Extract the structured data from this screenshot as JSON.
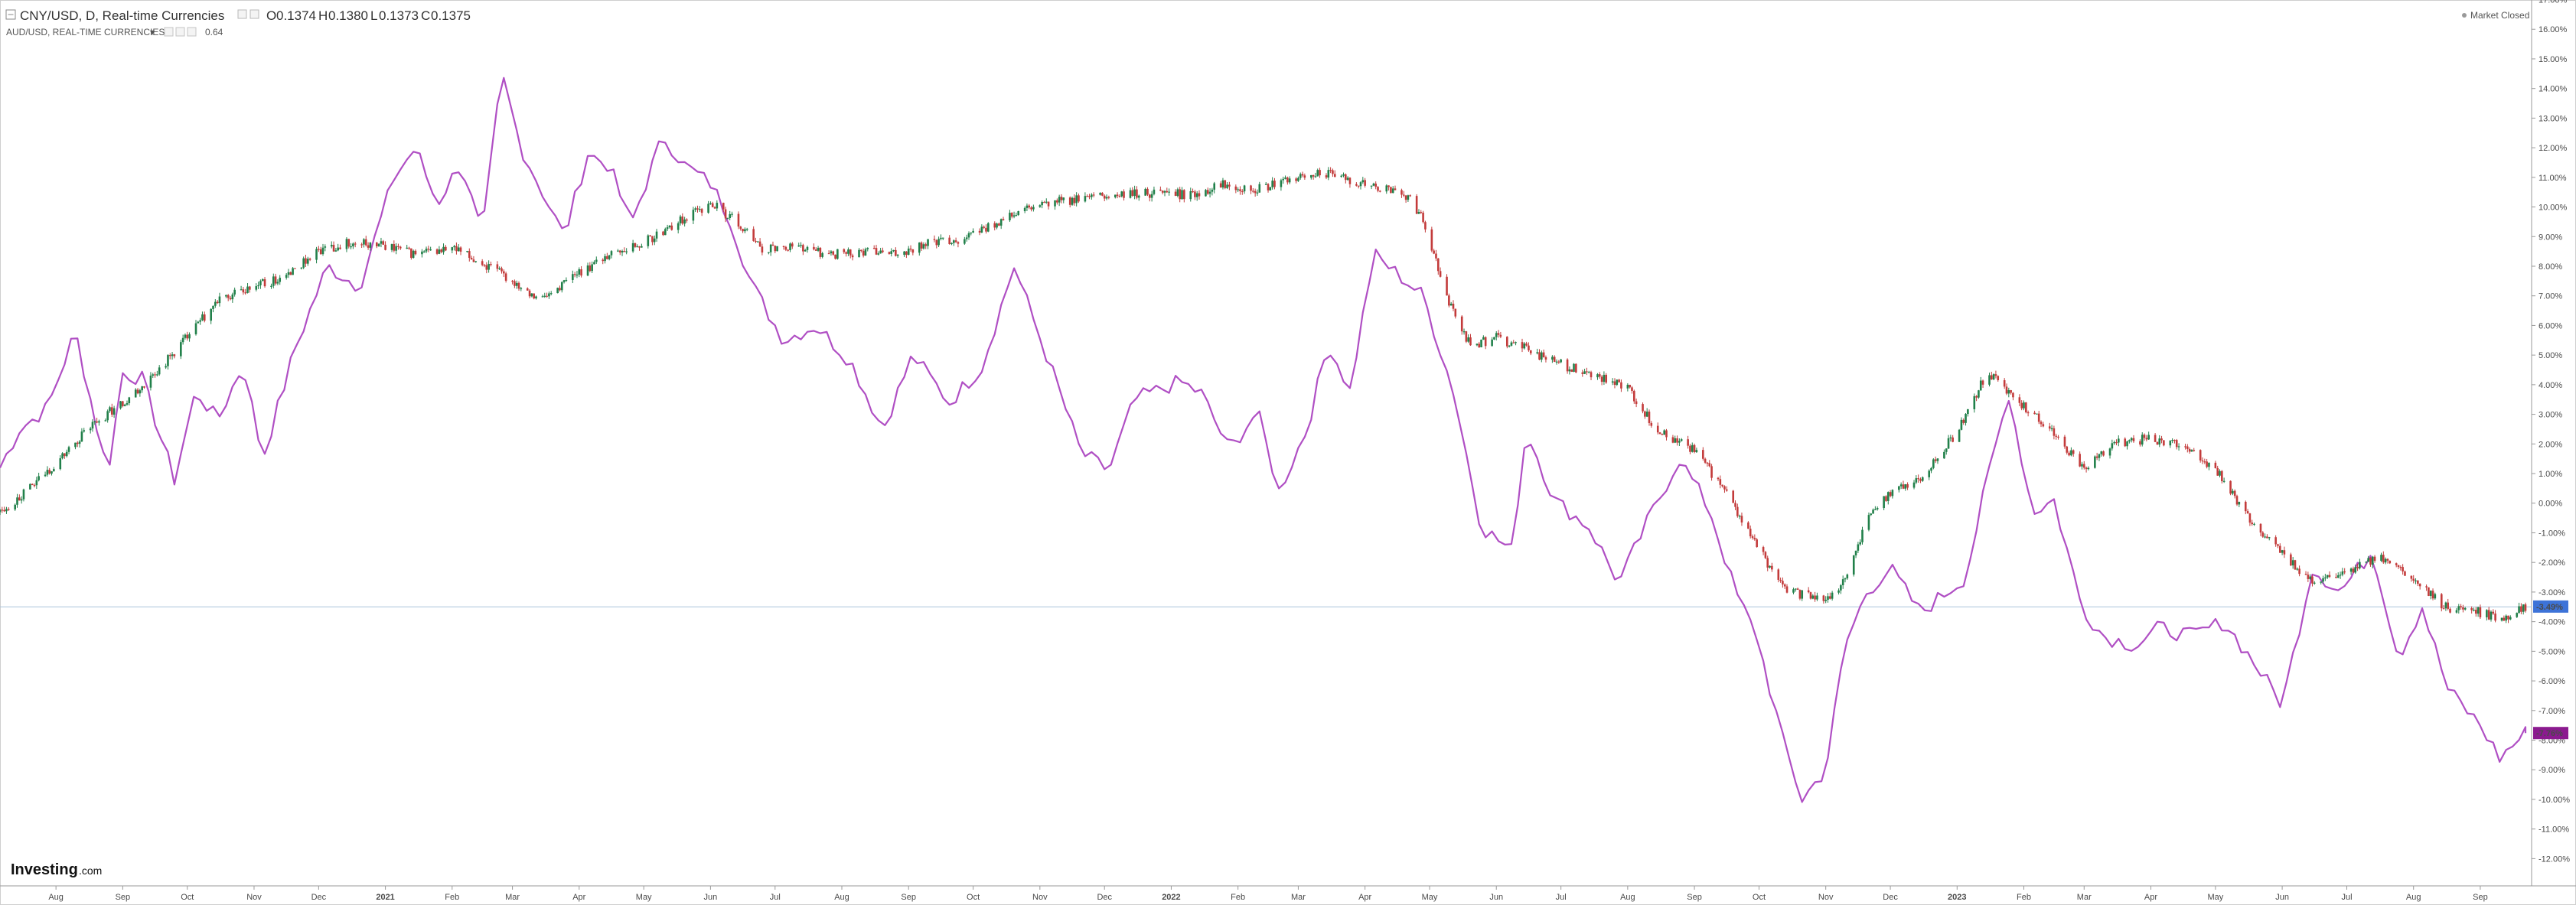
{
  "header": {
    "main_title": "CNY/USD, D, Real-time Currencies",
    "ohlc": [
      {
        "label": "O",
        "value": "0.1374"
      },
      {
        "label": "H",
        "value": "0.1380"
      },
      {
        "label": "L",
        "value": "0.1373"
      },
      {
        "label": "C",
        "value": "0.1375"
      }
    ],
    "compare_title": "AUD/USD, REAL-TIME CURRENCIES",
    "compare_value": "0.64",
    "market_status": "Market Closed"
  },
  "brand": {
    "name": "Investing",
    "suffix": ".com"
  },
  "colors": {
    "up": "#21804a",
    "down": "#c33b3b",
    "compare": "#b04fc4",
    "last_main": "#3d73d8",
    "last_compare": "#8b1a8f",
    "grid_line": "#aac3dc"
  },
  "chart_data": {
    "type": "line",
    "y_axis": {
      "unit": "%",
      "range": [
        -12.5,
        17.0
      ],
      "ticks": [
        "17.00%",
        "16.00%",
        "15.00%",
        "14.00%",
        "13.00%",
        "12.00%",
        "11.00%",
        "10.00%",
        "9.00%",
        "8.00%",
        "7.00%",
        "6.00%",
        "5.00%",
        "4.00%",
        "3.00%",
        "2.00%",
        "1.00%",
        "0.00%",
        "-1.00%",
        "-2.00%",
        "-3.00%",
        "-4.00%",
        "-5.00%",
        "-6.00%",
        "-7.00%",
        "-8.00%",
        "-9.00%",
        "-10.00%",
        "-11.00%",
        "-12.00%"
      ]
    },
    "x_axis": {
      "range": [
        "2020-07-06",
        "2023-09-22"
      ],
      "ticks": [
        {
          "date": "2020-08-01",
          "label": "Aug"
        },
        {
          "date": "2020-09-01",
          "label": "Sep"
        },
        {
          "date": "2020-10-01",
          "label": "Oct"
        },
        {
          "date": "2020-11-01",
          "label": "Nov"
        },
        {
          "date": "2020-12-01",
          "label": "Dec"
        },
        {
          "date": "2021-01-01",
          "label": "2021"
        },
        {
          "date": "2021-02-01",
          "label": "Feb"
        },
        {
          "date": "2021-03-01",
          "label": "Mar"
        },
        {
          "date": "2021-04-01",
          "label": "Apr"
        },
        {
          "date": "2021-05-01",
          "label": "May"
        },
        {
          "date": "2021-06-01",
          "label": "Jun"
        },
        {
          "date": "2021-07-01",
          "label": "Jul"
        },
        {
          "date": "2021-08-01",
          "label": "Aug"
        },
        {
          "date": "2021-09-01",
          "label": "Sep"
        },
        {
          "date": "2021-10-01",
          "label": "Oct"
        },
        {
          "date": "2021-11-01",
          "label": "Nov"
        },
        {
          "date": "2021-12-01",
          "label": "Dec"
        },
        {
          "date": "2022-01-01",
          "label": "2022"
        },
        {
          "date": "2022-02-01",
          "label": "Feb"
        },
        {
          "date": "2022-03-01",
          "label": "Mar"
        },
        {
          "date": "2022-04-01",
          "label": "Apr"
        },
        {
          "date": "2022-05-01",
          "label": "May"
        },
        {
          "date": "2022-06-01",
          "label": "Jun"
        },
        {
          "date": "2022-07-01",
          "label": "Jul"
        },
        {
          "date": "2022-08-01",
          "label": "Aug"
        },
        {
          "date": "2022-09-01",
          "label": "Sep"
        },
        {
          "date": "2022-10-01",
          "label": "Oct"
        },
        {
          "date": "2022-11-01",
          "label": "Nov"
        },
        {
          "date": "2022-12-01",
          "label": "Dec"
        },
        {
          "date": "2023-01-01",
          "label": "2023"
        },
        {
          "date": "2023-02-01",
          "label": "Feb"
        },
        {
          "date": "2023-03-01",
          "label": "Mar"
        },
        {
          "date": "2023-04-01",
          "label": "Apr"
        },
        {
          "date": "2023-05-01",
          "label": "May"
        },
        {
          "date": "2023-06-01",
          "label": "Jun"
        },
        {
          "date": "2023-07-01",
          "label": "Jul"
        },
        {
          "date": "2023-08-01",
          "label": "Aug"
        },
        {
          "date": "2023-09-01",
          "label": "Sep"
        }
      ]
    },
    "series": [
      {
        "name": "CNY/USD, D, Real-time Currencies",
        "style": "candlestick",
        "x": [
          "2020-07-06",
          "2020-07-20",
          "2020-08-03",
          "2020-08-17",
          "2020-09-01",
          "2020-09-15",
          "2020-10-01",
          "2020-10-15",
          "2020-11-01",
          "2020-11-15",
          "2020-12-01",
          "2020-12-15",
          "2021-01-01",
          "2021-01-15",
          "2021-02-01",
          "2021-02-15",
          "2021-03-01",
          "2021-03-15",
          "2021-04-01",
          "2021-04-15",
          "2021-05-01",
          "2021-05-15",
          "2021-06-01",
          "2021-06-10",
          "2021-06-25",
          "2021-07-10",
          "2021-07-25",
          "2021-08-10",
          "2021-08-25",
          "2021-09-10",
          "2021-09-25",
          "2021-10-10",
          "2021-10-25",
          "2021-11-10",
          "2021-11-25",
          "2021-12-10",
          "2021-12-25",
          "2022-01-10",
          "2022-01-25",
          "2022-02-10",
          "2022-02-25",
          "2022-03-10",
          "2022-03-25",
          "2022-04-10",
          "2022-04-20",
          "2022-04-28",
          "2022-05-10",
          "2022-05-20",
          "2022-06-01",
          "2022-06-15",
          "2022-07-01",
          "2022-07-15",
          "2022-08-01",
          "2022-08-15",
          "2022-09-01",
          "2022-09-15",
          "2022-10-01",
          "2022-10-15",
          "2022-11-01",
          "2022-11-10",
          "2022-11-20",
          "2022-12-01",
          "2022-12-15",
          "2023-01-01",
          "2023-01-15",
          "2023-02-01",
          "2023-02-15",
          "2023-03-01",
          "2023-03-15",
          "2023-04-01",
          "2023-04-15",
          "2023-05-01",
          "2023-05-15",
          "2023-06-01",
          "2023-06-15",
          "2023-07-01",
          "2023-07-15",
          "2023-08-01",
          "2023-08-15",
          "2023-09-01",
          "2023-09-10",
          "2023-09-22"
        ],
        "values": [
          -0.3,
          0.5,
          1.5,
          2.6,
          3.4,
          4.3,
          5.6,
          6.8,
          7.3,
          7.6,
          8.5,
          8.8,
          8.7,
          8.4,
          8.6,
          8.1,
          7.5,
          6.9,
          7.8,
          8.4,
          8.8,
          9.4,
          10.1,
          9.7,
          8.6,
          8.7,
          8.4,
          8.5,
          8.4,
          8.8,
          8.9,
          9.4,
          9.9,
          10.2,
          10.3,
          10.4,
          10.5,
          10.4,
          10.8,
          10.6,
          10.9,
          11.2,
          10.9,
          10.6,
          10.4,
          9.6,
          6.8,
          5.3,
          5.6,
          5.2,
          4.7,
          4.3,
          3.9,
          2.4,
          1.8,
          0.4,
          -1.6,
          -3.0,
          -3.2,
          -2.6,
          -0.6,
          0.4,
          0.8,
          2.4,
          4.4,
          3.3,
          2.3,
          1.2,
          2.0,
          2.2,
          1.9,
          1.2,
          -0.4,
          -1.7,
          -2.7,
          -2.4,
          -1.8,
          -2.6,
          -3.5,
          -3.7,
          -3.9,
          -3.5
        ]
      },
      {
        "name": "AUD/USD, REAL-TIME CURRENCIES",
        "style": "line",
        "x": [
          "2020-07-06",
          "2020-07-15",
          "2020-07-28",
          "2020-08-10",
          "2020-08-18",
          "2020-08-25",
          "2020-09-01",
          "2020-09-10",
          "2020-09-25",
          "2020-10-05",
          "2020-10-15",
          "2020-10-27",
          "2020-11-05",
          "2020-11-20",
          "2020-12-05",
          "2020-12-20",
          "2021-01-05",
          "2021-01-15",
          "2021-01-25",
          "2021-02-05",
          "2021-02-15",
          "2021-02-24",
          "2021-03-05",
          "2021-03-15",
          "2021-03-25",
          "2021-04-05",
          "2021-04-15",
          "2021-04-25",
          "2021-05-10",
          "2021-05-20",
          "2021-06-01",
          "2021-06-10",
          "2021-06-20",
          "2021-07-05",
          "2021-07-20",
          "2021-08-05",
          "2021-08-20",
          "2021-09-03",
          "2021-09-20",
          "2021-10-05",
          "2021-10-20",
          "2021-10-30",
          "2021-11-10",
          "2021-11-20",
          "2021-12-03",
          "2021-12-15",
          "2022-01-05",
          "2022-01-15",
          "2022-01-28",
          "2022-02-10",
          "2022-02-20",
          "2022-03-05",
          "2022-03-15",
          "2022-03-25",
          "2022-04-05",
          "2022-04-15",
          "2022-04-28",
          "2022-05-12",
          "2022-05-25",
          "2022-06-08",
          "2022-06-15",
          "2022-06-28",
          "2022-07-14",
          "2022-07-28",
          "2022-08-11",
          "2022-08-25",
          "2022-09-08",
          "2022-09-20",
          "2022-09-30",
          "2022-10-12",
          "2022-10-21",
          "2022-11-01",
          "2022-11-10",
          "2022-11-20",
          "2022-12-01",
          "2022-12-15",
          "2023-01-05",
          "2023-01-15",
          "2023-01-25",
          "2023-02-05",
          "2023-02-15",
          "2023-02-28",
          "2023-03-10",
          "2023-03-25",
          "2023-04-05",
          "2023-04-20",
          "2023-05-05",
          "2023-05-20",
          "2023-06-01",
          "2023-06-15",
          "2023-06-28",
          "2023-07-13",
          "2023-07-25",
          "2023-08-05",
          "2023-08-17",
          "2023-09-01",
          "2023-09-10",
          "2023-09-22"
        ],
        "values": [
          1.2,
          2.5,
          3.2,
          5.8,
          3.2,
          1.0,
          4.4,
          4.2,
          0.8,
          3.8,
          2.8,
          4.7,
          1.5,
          5.2,
          8.0,
          7.3,
          11.0,
          12.0,
          10.1,
          11.5,
          9.0,
          14.5,
          12.0,
          10.5,
          9.0,
          11.8,
          11.4,
          9.4,
          12.4,
          11.4,
          10.8,
          9.6,
          7.4,
          5.5,
          6.0,
          4.8,
          2.5,
          5.0,
          3.4,
          4.6,
          8.0,
          6.0,
          3.8,
          1.7,
          1.1,
          3.5,
          4.1,
          3.7,
          1.8,
          3.1,
          0.4,
          2.5,
          5.4,
          3.8,
          8.4,
          7.8,
          7.0,
          3.8,
          -0.8,
          -1.6,
          2.5,
          0.1,
          -0.8,
          -2.7,
          -0.5,
          1.5,
          -0.2,
          -3.0,
          -4.5,
          -8.0,
          -10.0,
          -9.0,
          -4.8,
          -3.0,
          -2.2,
          -3.7,
          -2.5,
          0.8,
          3.7,
          -0.3,
          0.1,
          -3.5,
          -4.5,
          -4.8,
          -4.2,
          -4.5,
          -4.0,
          -5.5,
          -6.8,
          -2.2,
          -3.0,
          -1.6,
          -5.2,
          -3.5,
          -6.3,
          -7.5,
          -8.6,
          -7.76
        ]
      }
    ],
    "last_values": {
      "main": "-3.49%",
      "compare": "-7.76%"
    },
    "grid": false,
    "legend": "top-left"
  }
}
